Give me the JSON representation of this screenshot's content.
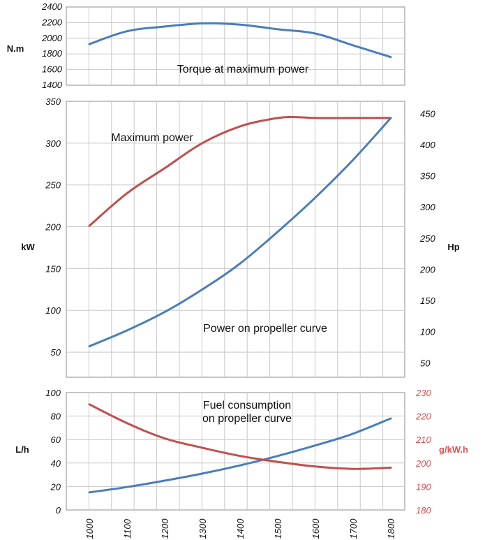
{
  "chart_data": [
    {
      "type": "line",
      "annotation": "Torque at maximum power",
      "ylabel": "N.m",
      "ylim": [
        1400,
        2400
      ],
      "yticks": [
        1400,
        1600,
        1800,
        2000,
        2200,
        2400
      ],
      "grid": true,
      "series": [
        {
          "color": "#4a7ebb",
          "x": [
            1000,
            1100,
            1200,
            1300,
            1400,
            1500,
            1600,
            1700,
            1800
          ],
          "values": [
            1925,
            2090,
            2150,
            2190,
            2175,
            2115,
            2060,
            1910,
            1760
          ]
        }
      ]
    },
    {
      "type": "line",
      "annotations": [
        "Maximum power",
        "Power on propeller curve"
      ],
      "ylabel": "kW",
      "ylim": [
        20,
        350
      ],
      "yticks": [
        50,
        100,
        150,
        200,
        250,
        300,
        350
      ],
      "y2label": "Hp",
      "y2ticks": [
        50,
        100,
        150,
        200,
        250,
        300,
        350,
        400,
        450
      ],
      "grid": true,
      "series": [
        {
          "color": "#c0504d",
          "x": [
            1000,
            1100,
            1200,
            1300,
            1400,
            1500,
            1550,
            1600,
            1700,
            1800
          ],
          "values": [
            201,
            240,
            270,
            300,
            320,
            330,
            331,
            330,
            330,
            330
          ]
        },
        {
          "color": "#4a7ebb",
          "x": [
            1000,
            1100,
            1200,
            1300,
            1400,
            1500,
            1600,
            1700,
            1800
          ],
          "values": [
            57,
            76,
            98,
            125,
            156,
            194,
            235,
            280,
            330
          ]
        }
      ]
    },
    {
      "type": "line",
      "annotation": "Fuel consumption\non propeller curve",
      "ylabel": "L/h",
      "ylim": [
        0,
        100
      ],
      "yticks": [
        0,
        20,
        40,
        60,
        80,
        100
      ],
      "y2label": "g/kW.h",
      "y2lim": [
        180,
        230
      ],
      "y2ticks": [
        180,
        190,
        200,
        210,
        220,
        230
      ],
      "xlim": [
        1000,
        1800
      ],
      "xticks": [
        1000,
        1100,
        1200,
        1300,
        1400,
        1500,
        1600,
        1700,
        1800
      ],
      "grid": true,
      "series": [
        {
          "color": "#4a7ebb",
          "axis": "left",
          "x": [
            1000,
            1100,
            1200,
            1300,
            1400,
            1500,
            1600,
            1700,
            1800
          ],
          "values": [
            15,
            19.5,
            25,
            31,
            38,
            46,
            55,
            65,
            78
          ]
        },
        {
          "color": "#c0504d",
          "axis": "right",
          "x": [
            1000,
            1100,
            1200,
            1300,
            1400,
            1500,
            1600,
            1700,
            1800
          ],
          "values": [
            225,
            217,
            210.5,
            206.5,
            203,
            200.5,
            198.5,
            197.5,
            198
          ]
        }
      ]
    }
  ]
}
